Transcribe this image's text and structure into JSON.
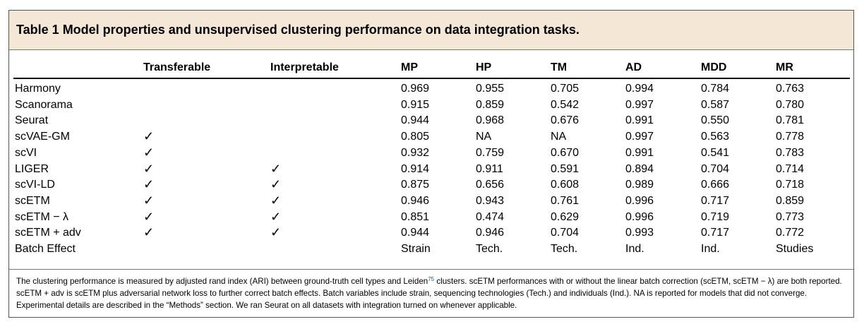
{
  "caption": {
    "title": "Table 1 Model properties and unsupervised clustering performance on data integration tasks."
  },
  "headers": [
    "",
    "Transferable",
    "Interpretable",
    "MP",
    "HP",
    "TM",
    "AD",
    "MDD",
    "MR"
  ],
  "rows": [
    {
      "model": "Harmony",
      "transferable": "",
      "interpretable": "",
      "MP": "0.969",
      "HP": "0.955",
      "TM": "0.705",
      "AD": "0.994",
      "MDD": "0.784",
      "MR": "0.763"
    },
    {
      "model": "Scanorama",
      "transferable": "",
      "interpretable": "",
      "MP": "0.915",
      "HP": "0.859",
      "TM": "0.542",
      "AD": "0.997",
      "MDD": "0.587",
      "MR": "0.780"
    },
    {
      "model": "Seurat",
      "transferable": "",
      "interpretable": "",
      "MP": "0.944",
      "HP": "0.968",
      "TM": "0.676",
      "AD": "0.991",
      "MDD": "0.550",
      "MR": "0.781"
    },
    {
      "model": "scVAE-GM",
      "transferable": "✓",
      "interpretable": "",
      "MP": "0.805",
      "HP": "NA",
      "TM": "NA",
      "AD": "0.997",
      "MDD": "0.563",
      "MR": "0.778"
    },
    {
      "model": "scVI",
      "transferable": "✓",
      "interpretable": "",
      "MP": "0.932",
      "HP": "0.759",
      "TM": "0.670",
      "AD": "0.991",
      "MDD": "0.541",
      "MR": "0.783"
    },
    {
      "model": "LIGER",
      "transferable": "✓",
      "interpretable": "✓",
      "MP": "0.914",
      "HP": "0.911",
      "TM": "0.591",
      "AD": "0.894",
      "MDD": "0.704",
      "MR": "0.714"
    },
    {
      "model": "scVI-LD",
      "transferable": "✓",
      "interpretable": "✓",
      "MP": "0.875",
      "HP": "0.656",
      "TM": "0.608",
      "AD": "0.989",
      "MDD": "0.666",
      "MR": "0.718"
    },
    {
      "model": "scETM",
      "transferable": "✓",
      "interpretable": "✓",
      "MP": "0.946",
      "HP": "0.943",
      "TM": "0.761",
      "AD": "0.996",
      "MDD": "0.717",
      "MR": "0.859"
    },
    {
      "model": "scETM − λ",
      "transferable": "✓",
      "interpretable": "✓",
      "MP": "0.851",
      "HP": "0.474",
      "TM": "0.629",
      "AD": "0.996",
      "MDD": "0.719",
      "MR": "0.773"
    },
    {
      "model": "scETM + adv",
      "transferable": "✓",
      "interpretable": "✓",
      "MP": "0.944",
      "HP": "0.946",
      "TM": "0.704",
      "AD": "0.993",
      "MDD": "0.717",
      "MR": "0.772"
    },
    {
      "model": "Batch Effect",
      "transferable": "",
      "interpretable": "",
      "MP": "Strain",
      "HP": "Tech.",
      "TM": "Tech.",
      "AD": "Ind.",
      "MDD": "Ind.",
      "MR": "Studies"
    }
  ],
  "footnote": {
    "part1": "The clustering performance is measured by adjusted rand index (ARI) between ground-truth cell types and Leiden",
    "ref": "75",
    "part2": " clusters. scETM performances with or without the linear batch correction (scETM, scETM − λ) are both reported. scETM + adv is scETM plus adversarial network loss to further correct batch effects. Batch variables include strain, sequencing technologies (Tech.) and individuals (Ind.). NA is reported for models that did not converge. Experimental details are described in the “Methods” section. We ran Seurat on all datasets with integration turned on whenever applicable."
  }
}
